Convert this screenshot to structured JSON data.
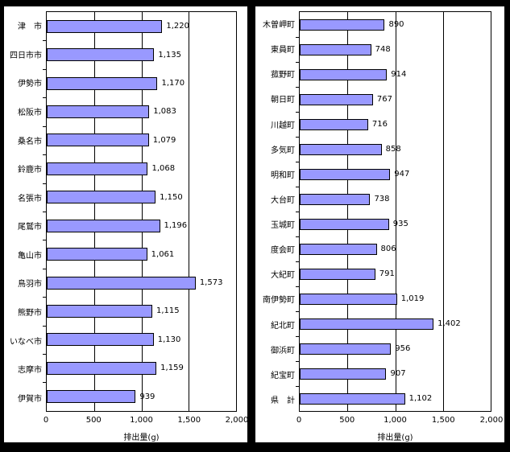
{
  "page": {
    "background_color": "#000000",
    "panel_background_color": "#ffffff"
  },
  "chart_data": [
    {
      "type": "bar",
      "orientation": "horizontal",
      "xlabel": "排出量(g)",
      "xlim": [
        0,
        2000
      ],
      "xticks": [
        "0",
        "500",
        "1,000",
        "1,500",
        "2,000"
      ],
      "grid": true,
      "legend": "none",
      "bar_color": "#9999ff",
      "bar_border_color": "#000000",
      "categories": [
        "津　市",
        "四日市市",
        "伊勢市",
        "松阪市",
        "桑名市",
        "鈴鹿市",
        "名張市",
        "尾鷲市",
        "亀山市",
        "鳥羽市",
        "熊野市",
        "いなべ市",
        "志摩市",
        "伊賀市"
      ],
      "values": [
        1220,
        1135,
        1170,
        1083,
        1079,
        1068,
        1150,
        1196,
        1061,
        1573,
        1115,
        1130,
        1159,
        939
      ],
      "value_labels": [
        "1,220",
        "1,135",
        "1,170",
        "1,083",
        "1,079",
        "1,068",
        "1,150",
        "1,196",
        "1,061",
        "1,573",
        "1,115",
        "1,130",
        "1,159",
        "939"
      ]
    },
    {
      "type": "bar",
      "orientation": "horizontal",
      "xlabel": "排出量(g)",
      "xlim": [
        0,
        2000
      ],
      "xticks": [
        "0",
        "500",
        "1,000",
        "1,500",
        "2,000"
      ],
      "grid": true,
      "legend": "none",
      "bar_color": "#9999ff",
      "bar_border_color": "#000000",
      "categories": [
        "木曽岬町",
        "東員町",
        "菰野町",
        "朝日町",
        "川越町",
        "多気町",
        "明和町",
        "大台町",
        "玉城町",
        "度会町",
        "大紀町",
        "南伊勢町",
        "紀北町",
        "御浜町",
        "紀宝町",
        "県　計"
      ],
      "values": [
        890,
        748,
        914,
        767,
        716,
        858,
        947,
        738,
        935,
        806,
        791,
        1019,
        1402,
        956,
        907,
        1102
      ],
      "value_labels": [
        "890",
        "748",
        "914",
        "767",
        "716",
        "858",
        "947",
        "738",
        "935",
        "806",
        "791",
        "1,019",
        "1,402",
        "956",
        "907",
        "1,102"
      ]
    }
  ]
}
